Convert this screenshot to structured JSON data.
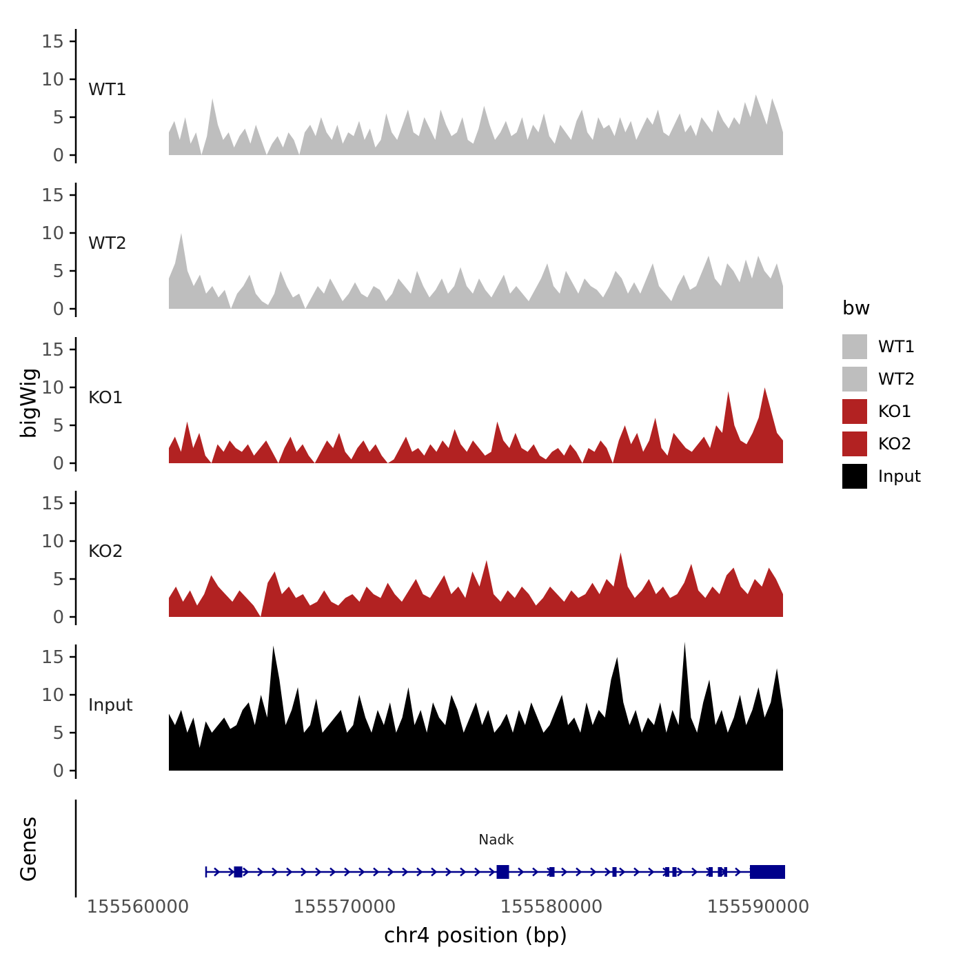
{
  "figure": {
    "ylab": "bigWig",
    "genes_lab": "Genes",
    "xlab": "chr4 position (bp)"
  },
  "axis": {
    "yticks": [
      0,
      5,
      10,
      15
    ],
    "xticks": [
      155560000,
      155570000,
      155580000,
      155590000
    ]
  },
  "legend": {
    "title": "bw",
    "entries": [
      {
        "label": "WT1",
        "color": "#bebebe"
      },
      {
        "label": "WT2",
        "color": "#bebebe"
      },
      {
        "label": "KO1",
        "color": "#b22222"
      },
      {
        "label": "KO2",
        "color": "#b22222"
      },
      {
        "label": "Input",
        "color": "#000000"
      }
    ]
  },
  "chart_data": {
    "type": "area",
    "title": "",
    "xlabel": "chr4 position (bp)",
    "ylabel": "bigWig",
    "x_units": "bp",
    "x_range": [
      155561500,
      155591200
    ],
    "track_ylim": [
      0,
      17
    ],
    "tracks": [
      {
        "name": "WT1",
        "color": "#bebebe",
        "values": [
          3,
          4.5,
          2,
          5,
          1.5,
          3,
          0,
          2.5,
          7.5,
          4,
          2,
          3,
          1,
          2.5,
          3.5,
          1.5,
          4,
          2,
          0,
          1.5,
          2.5,
          1,
          3,
          2,
          0,
          3,
          4,
          2.5,
          5,
          3,
          2,
          4,
          1.5,
          3,
          2.5,
          4.5,
          2,
          3.5,
          1,
          2,
          5.5,
          3,
          2,
          4,
          6,
          3,
          2.5,
          5,
          3.5,
          2,
          6,
          4,
          2.5,
          3,
          5,
          2,
          1.5,
          3.5,
          6.5,
          4,
          2,
          3,
          4.5,
          2.5,
          3,
          5,
          2,
          4,
          3,
          5.5,
          2.5,
          1.5,
          4,
          3,
          2,
          4.5,
          6,
          3,
          2,
          5,
          3.5,
          4,
          2.5,
          5,
          3,
          4.5,
          2,
          3.5,
          5,
          4,
          6,
          3,
          2.5,
          4,
          5.5,
          3,
          4,
          2.5,
          5,
          4,
          3,
          6,
          4.5,
          3.5,
          5,
          4,
          7,
          5,
          8,
          6,
          4,
          7.5,
          5.5,
          3
        ]
      },
      {
        "name": "WT2",
        "color": "#bebebe",
        "values": [
          4,
          6,
          10,
          5,
          3,
          4.5,
          2,
          3,
          1.5,
          2.5,
          0,
          2,
          3,
          4.5,
          2,
          1,
          0.5,
          2,
          5,
          3,
          1.5,
          2,
          0,
          1.5,
          3,
          2,
          4,
          2.5,
          1,
          2,
          3.5,
          2,
          1.5,
          3,
          2.5,
          1,
          2,
          4,
          3,
          2,
          5,
          3,
          1.5,
          2.5,
          4,
          2,
          3,
          5.5,
          3,
          2,
          4,
          2.5,
          1.5,
          3,
          4.5,
          2,
          3,
          2,
          1,
          2.5,
          4,
          6,
          3,
          2,
          5,
          3.5,
          2,
          4,
          3,
          2.5,
          1.5,
          3,
          5,
          4,
          2,
          3.5,
          2,
          4,
          6,
          3,
          2,
          1,
          3,
          4.5,
          2.5,
          3,
          5,
          7,
          4,
          3,
          6,
          5,
          3.5,
          6.5,
          4,
          7,
          5,
          4,
          6,
          3
        ]
      },
      {
        "name": "KO1",
        "color": "#b22222",
        "values": [
          2,
          3.5,
          1.5,
          5.5,
          2,
          4,
          1,
          0,
          2.5,
          1.5,
          3,
          2,
          1.5,
          2.5,
          1,
          2,
          3,
          1.5,
          0,
          2,
          3.5,
          1.5,
          2.5,
          1,
          0,
          1.5,
          3,
          2,
          4,
          1.5,
          0.5,
          2,
          3,
          1.5,
          2.5,
          1,
          0,
          0.5,
          2,
          3.5,
          1.5,
          2,
          1,
          2.5,
          1.5,
          3,
          2,
          4.5,
          2.5,
          1.5,
          3,
          2,
          1,
          1.5,
          5.5,
          3,
          2,
          4,
          2,
          1.5,
          2.5,
          1,
          0.5,
          1.5,
          2,
          1,
          2.5,
          1.5,
          0,
          2,
          1.5,
          3,
          2,
          0,
          3,
          5,
          2.5,
          4,
          1.5,
          3,
          6,
          2,
          1,
          4,
          3,
          2,
          1.5,
          2.5,
          3.5,
          2,
          5,
          4,
          9.5,
          5,
          3,
          2.5,
          4,
          6,
          10,
          7,
          4,
          3
        ]
      },
      {
        "name": "KO2",
        "color": "#b22222",
        "values": [
          2.5,
          4,
          2,
          3.5,
          1.5,
          3,
          5.5,
          4,
          3,
          2,
          3.5,
          2.5,
          1.5,
          0,
          4.5,
          6,
          3,
          4,
          2.5,
          3,
          1.5,
          2,
          3.5,
          2,
          1.5,
          2.5,
          3,
          2,
          4,
          3,
          2.5,
          4.5,
          3,
          2,
          3.5,
          5,
          3,
          2.5,
          4,
          5.5,
          3,
          4,
          2.5,
          6,
          4,
          7.5,
          3,
          2,
          3.5,
          2.5,
          4,
          3,
          1.5,
          2.5,
          4,
          3,
          2,
          3.5,
          2.5,
          3,
          4.5,
          3,
          5,
          4,
          8.5,
          4,
          2.5,
          3.5,
          5,
          3,
          4,
          2.5,
          3,
          4.5,
          7,
          3.5,
          2.5,
          4,
          3,
          5.5,
          6.5,
          4,
          3,
          5,
          4,
          6.5,
          5,
          3
        ]
      },
      {
        "name": "Input",
        "color": "#000000",
        "values": [
          7.5,
          6,
          8,
          5,
          7,
          3,
          6.5,
          5,
          6,
          7,
          5.5,
          6,
          8,
          9,
          6,
          10,
          7,
          16.5,
          12,
          6,
          8,
          11,
          5,
          6,
          9.5,
          5,
          6,
          7,
          8,
          5,
          6,
          10,
          7,
          5,
          8,
          6,
          9,
          5,
          7,
          11,
          6,
          8,
          5,
          9,
          7,
          6,
          10,
          8,
          5,
          7,
          9,
          6,
          8,
          5,
          6,
          7.5,
          5,
          8,
          6,
          9,
          7,
          5,
          6,
          8,
          10,
          6,
          7,
          5,
          9,
          6,
          8,
          7,
          12,
          15,
          9,
          6,
          8,
          5,
          7,
          6,
          9,
          5,
          8,
          6,
          17,
          7,
          5,
          9,
          12,
          6,
          8,
          5,
          7,
          10,
          6,
          8,
          11,
          7,
          9,
          13.5,
          8
        ]
      }
    ],
    "gene": {
      "name": "Nadk",
      "chrom": "chr4",
      "strand": "+",
      "color": "#00008b",
      "start": 155563300,
      "end": 155591300,
      "exons": [
        [
          155564650,
          155565050,
          16
        ],
        [
          155577350,
          155577950,
          20
        ],
        [
          155579900,
          155580150,
          14
        ],
        [
          155582950,
          155583150,
          14
        ],
        [
          155585500,
          155585700,
          14
        ],
        [
          155585850,
          155586050,
          14
        ],
        [
          155587600,
          155587800,
          14
        ],
        [
          155588050,
          155588250,
          14
        ],
        [
          155588350,
          155588500,
          14
        ],
        [
          155589600,
          155591300,
          20
        ]
      ]
    }
  }
}
